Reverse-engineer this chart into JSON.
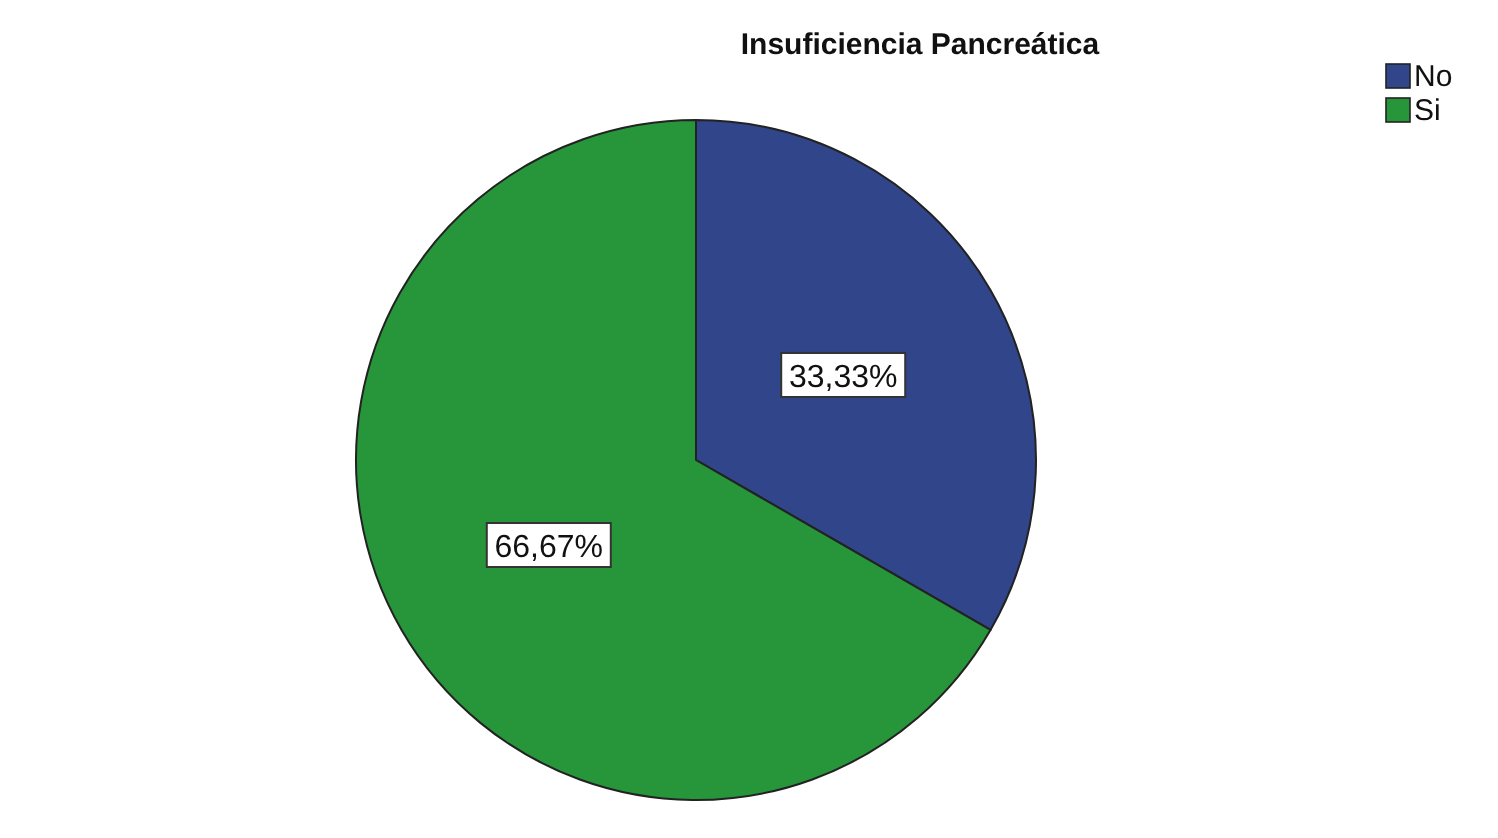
{
  "chart_data": {
    "type": "pie",
    "title": "Insuficiencia Pancreática",
    "categories": [
      "No",
      "Si"
    ],
    "values": [
      33.33,
      66.67
    ],
    "colors": [
      "#30458a",
      "#27963a"
    ],
    "value_labels": [
      "33,33%",
      "66,67%"
    ],
    "legend": "top right"
  }
}
